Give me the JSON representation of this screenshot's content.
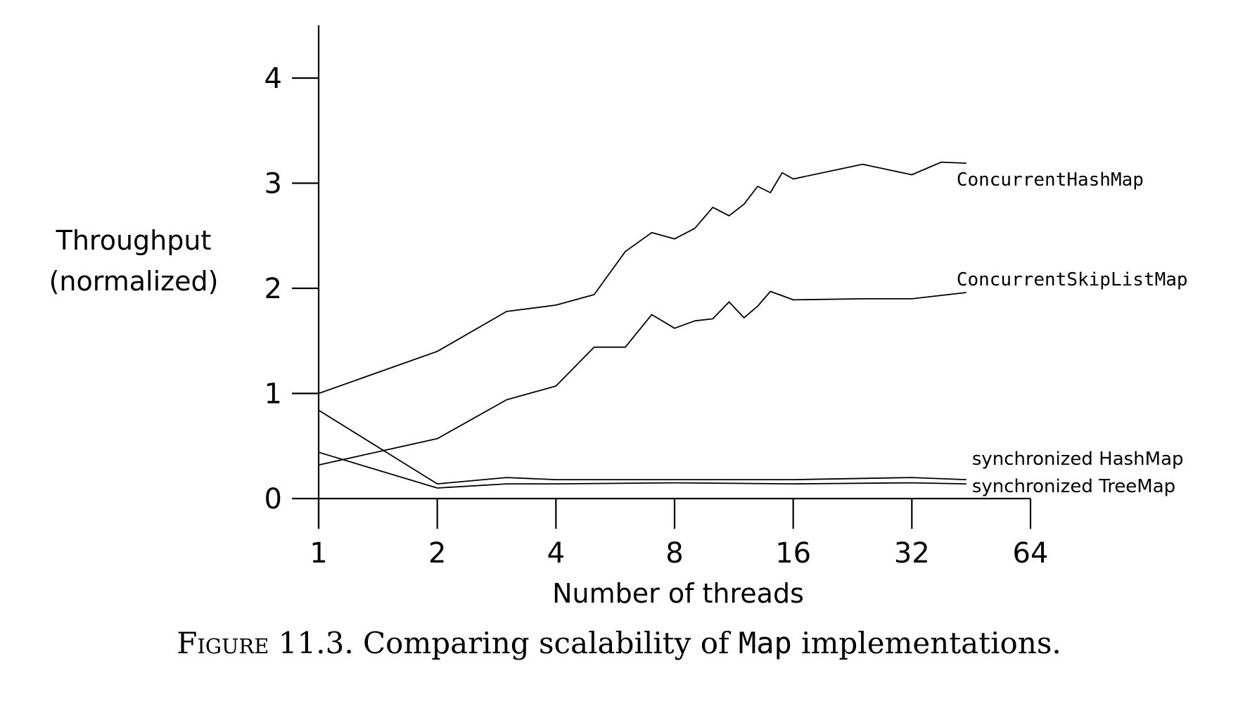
{
  "chart_data": {
    "type": "line",
    "title": "",
    "xlabel": "Number of threads",
    "ylabel": [
      "Throughput",
      "(normalized)"
    ],
    "x_scale": "log2",
    "xlim": [
      1,
      64
    ],
    "ylim": [
      0,
      4.5
    ],
    "x_ticks": [
      1,
      2,
      4,
      8,
      16,
      32,
      64
    ],
    "x_tick_labels": [
      "1",
      "2",
      "4",
      "8",
      "16",
      "32",
      "64"
    ],
    "y_ticks": [
      0,
      1,
      2,
      3,
      4
    ],
    "y_tick_labels": [
      "0",
      "1",
      "2",
      "3",
      "4"
    ],
    "grid": false,
    "legend": "inline labels at right end of each line",
    "series": [
      {
        "name": "ConcurrentHashMap",
        "x": [
          1,
          2,
          3,
          4,
          5,
          6,
          7,
          8,
          9,
          10,
          11,
          12,
          13,
          14,
          15,
          16,
          24,
          32,
          38,
          44
        ],
        "y": [
          1.0,
          1.4,
          1.78,
          1.84,
          1.94,
          2.35,
          2.53,
          2.47,
          2.57,
          2.77,
          2.69,
          2.8,
          2.97,
          2.91,
          3.1,
          3.04,
          3.18,
          3.08,
          3.2,
          3.19
        ]
      },
      {
        "name": "ConcurrentSkipListMap",
        "x": [
          1,
          2,
          3,
          4,
          5,
          6,
          7,
          8,
          9,
          10,
          11,
          12,
          13,
          14,
          15,
          16,
          24,
          32,
          44
        ],
        "y": [
          0.32,
          0.57,
          0.94,
          1.07,
          1.44,
          1.44,
          1.75,
          1.62,
          1.69,
          1.71,
          1.87,
          1.72,
          1.83,
          1.97,
          1.93,
          1.89,
          1.9,
          1.9,
          1.96
        ]
      },
      {
        "name": "synchronized HashMap",
        "x": [
          1,
          2,
          3,
          4,
          8,
          16,
          32,
          44
        ],
        "y": [
          0.84,
          0.14,
          0.2,
          0.18,
          0.18,
          0.18,
          0.2,
          0.18
        ]
      },
      {
        "name": "synchronized TreeMap",
        "x": [
          1,
          2,
          3,
          4,
          8,
          16,
          32,
          44
        ],
        "y": [
          0.44,
          0.1,
          0.14,
          0.14,
          0.15,
          0.14,
          0.15,
          0.14
        ]
      }
    ]
  },
  "caption": {
    "figure_label": "Figure",
    "figure_number": "11.3.",
    "text_before": "Comparing scalability of",
    "code": "Map",
    "text_after": "implementations."
  }
}
